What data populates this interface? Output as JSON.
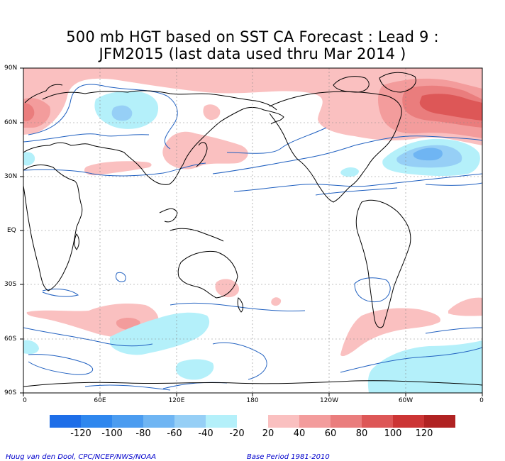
{
  "title_line1": "500 mb HGT based on SST CA Forecast : Lead 9 :",
  "title_line2": "JFM2015 (last data used thru Mar 2014 )",
  "lat_labels": [
    "90N",
    "60N",
    "30N",
    "EQ",
    "30S",
    "60S",
    "90S"
  ],
  "lon_labels": [
    "0",
    "60E",
    "120E",
    "180",
    "120W",
    "60W",
    "0"
  ],
  "colorbar": {
    "negative_labels": [
      "-120",
      "-100",
      "-80",
      "-60",
      "-40",
      "-20"
    ],
    "positive_labels": [
      "20",
      "40",
      "60",
      "80",
      "100",
      "120"
    ],
    "negative_colors": [
      "#1e6ee8",
      "#2f87ee",
      "#4b9cf0",
      "#6fb5f3",
      "#96cff6",
      "#b4f0fa"
    ],
    "positive_colors": [
      "#fac0c0",
      "#f39c9c",
      "#ea7d7d",
      "#dd5757",
      "#cc3535",
      "#b02222"
    ]
  },
  "footer_left": "Huug van den Dool, CPC/NCEP/NWS/NOAA",
  "footer_right": "Base Period 1981-2010"
}
